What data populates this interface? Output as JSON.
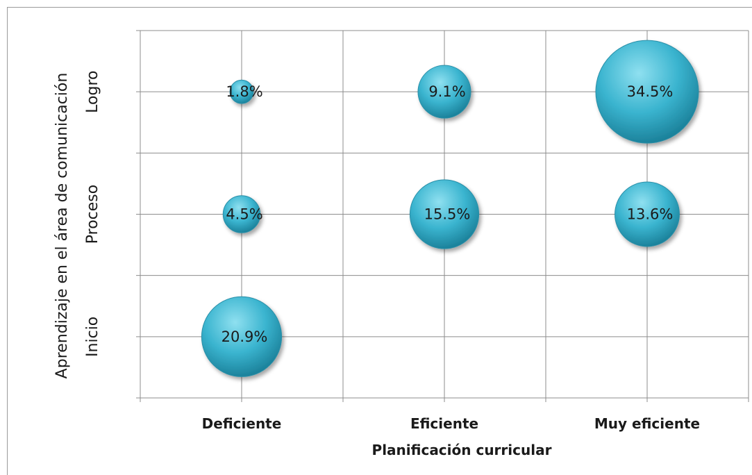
{
  "chart_data": {
    "type": "bubble",
    "title": "",
    "xlabel": "Planificación curricular",
    "ylabel": "Aprendizaje en el área de comunicación",
    "x_categories": [
      "Deficiente",
      "Eficiente",
      "Muy eficiente"
    ],
    "y_categories": [
      "Inicio",
      "Proceso",
      "Logro"
    ],
    "grid": true,
    "legend": "none",
    "bubble_color": "#3ab4cf",
    "points": [
      {
        "x": "Deficiente",
        "y": "Logro",
        "value": 1.8,
        "label": "1.8%"
      },
      {
        "x": "Eficiente",
        "y": "Logro",
        "value": 9.1,
        "label": "9.1%"
      },
      {
        "x": "Muy eficiente",
        "y": "Logro",
        "value": 34.5,
        "label": "34.5%"
      },
      {
        "x": "Deficiente",
        "y": "Proceso",
        "value": 4.5,
        "label": "4.5%"
      },
      {
        "x": "Eficiente",
        "y": "Proceso",
        "value": 15.5,
        "label": "15.5%"
      },
      {
        "x": "Muy eficiente",
        "y": "Proceso",
        "value": 13.6,
        "label": "13.6%"
      },
      {
        "x": "Deficiente",
        "y": "Inicio",
        "value": 20.9,
        "label": "20.9%"
      }
    ]
  }
}
